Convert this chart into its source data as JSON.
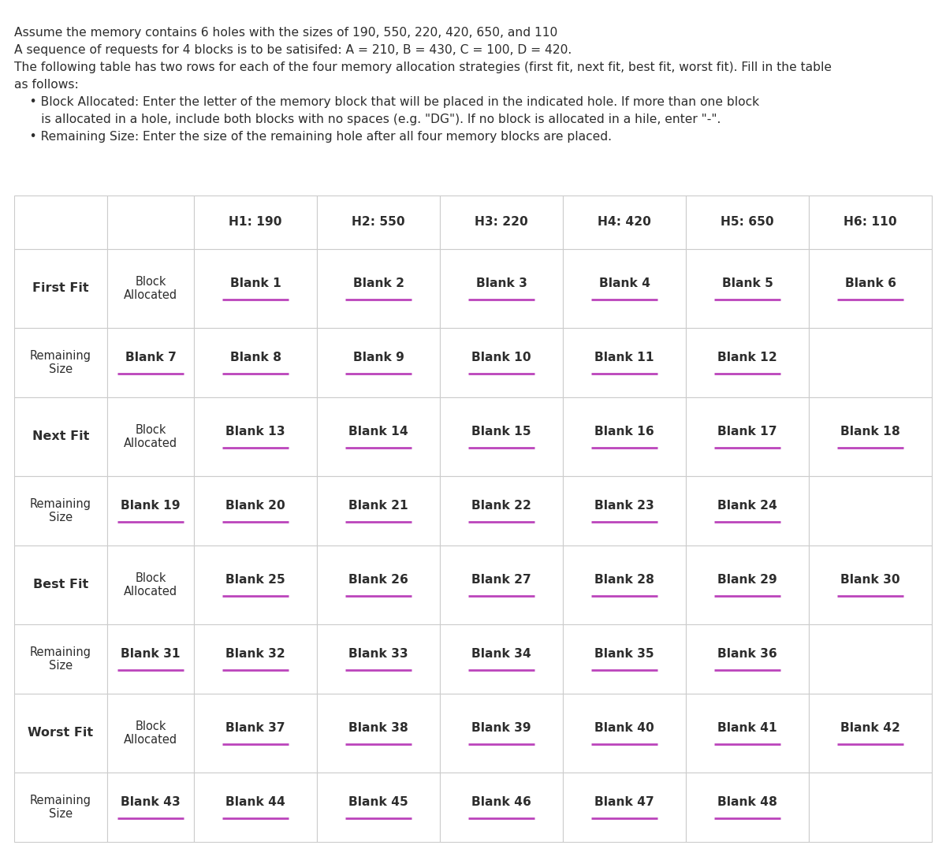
{
  "title_lines": [
    "Assume the memory contains 6 holes with the sizes of 190, 550, 220, 420, 650, and 110",
    "A sequence of requests for 4 blocks is to be satisifed: A = 210, B = 430, C = 100, D = 420.",
    "The following table has two rows for each of the four memory allocation strategies (first fit, next fit, best fit, worst fit). Fill in the table",
    "as follows:",
    "    • Block Allocated: Enter the letter of the memory block that will be placed in the indicated hole. If more than one block",
    "       is allocated in a hole, include both blocks with no spaces (e.g. \"DG\"). If no block is allocated in a hile, enter \"-\".",
    "    • Remaining Size: Enter the size of the remaining hole after all four memory blocks are placed."
  ],
  "col_headers": [
    "H1: 190",
    "H2: 550",
    "H3: 220",
    "H4: 420",
    "H5: 650",
    "H6: 110"
  ],
  "strategies": [
    {
      "name": "First Fit",
      "block_cells": [
        "Blank 1",
        "Blank 2",
        "Blank 3",
        "Blank 4",
        "Blank 5",
        "Blank 6"
      ],
      "remain_cells": [
        "Blank 7",
        "Blank 8",
        "Blank 9",
        "Blank 10",
        "Blank 11",
        "Blank 12"
      ]
    },
    {
      "name": "Next Fit",
      "block_cells": [
        "Blank 13",
        "Blank 14",
        "Blank 15",
        "Blank 16",
        "Blank 17",
        "Blank 18"
      ],
      "remain_cells": [
        "Blank 19",
        "Blank 20",
        "Blank 21",
        "Blank 22",
        "Blank 23",
        "Blank 24"
      ]
    },
    {
      "name": "Best Fit",
      "block_cells": [
        "Blank 25",
        "Blank 26",
        "Blank 27",
        "Blank 28",
        "Blank 29",
        "Blank 30"
      ],
      "remain_cells": [
        "Blank 31",
        "Blank 32",
        "Blank 33",
        "Blank 34",
        "Blank 35",
        "Blank 36"
      ]
    },
    {
      "name": "Worst Fit",
      "block_cells": [
        "Blank 37",
        "Blank 38",
        "Blank 39",
        "Blank 40",
        "Blank 41",
        "Blank 42"
      ],
      "remain_cells": [
        "Blank 43",
        "Blank 44",
        "Blank 45",
        "Blank 46",
        "Blank 47",
        "Blank 48"
      ]
    }
  ],
  "bg_color": "#ffffff",
  "text_color": "#2d2d2d",
  "underline_color": "#bb44bb",
  "border_color": "#cccccc",
  "title_fontsize": 11.2,
  "header_fontsize": 11.2,
  "cell_fontsize": 11.2,
  "strategy_fontsize": 11.5,
  "sublabel_fontsize": 10.5
}
